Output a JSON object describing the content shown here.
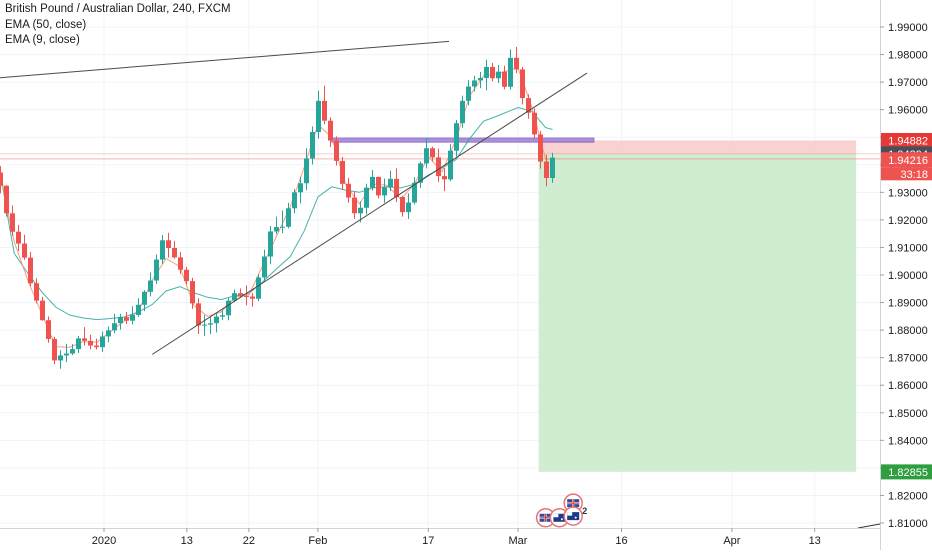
{
  "header": {
    "title": "British Pound / Australian Dollar, 240, FXCM",
    "indicators": [
      "EMA (50, close)",
      "EMA (9, close)"
    ]
  },
  "colors": {
    "up": "#26a69a",
    "down": "#ef5350",
    "ema50": "#26a69a",
    "ema9": "#ff8a65",
    "zone": "#9575cd",
    "stop_area": "#f8c9c9",
    "target_area": "#ccebcc",
    "grid": "#f0f3fa",
    "axis_text": "#1b1b1b",
    "trendline": "#4a4a4a"
  },
  "chart_data": {
    "type": "candlestick",
    "symbol": "GBPAUD",
    "timeframe": "240",
    "ylim": [
      1.8095,
      1.9985
    ],
    "y_ticks": [
      "1.99000",
      "1.98000",
      "1.97000",
      "1.96000",
      "1.95000",
      "1.94000",
      "1.93000",
      "1.92000",
      "1.91000",
      "1.90000",
      "1.89000",
      "1.88000",
      "1.87000",
      "1.86000",
      "1.85000",
      "1.84000",
      "1.83000",
      "1.82000",
      "1.81000"
    ],
    "x_ticks": [
      "2020",
      "13",
      "22",
      "Feb",
      "17",
      "Mar",
      "16",
      "Apr",
      "13"
    ],
    "x_tick_dates": [
      "2020-01-01",
      "2020-01-13",
      "2020-01-22",
      "2020-02-01",
      "2020-02-17",
      "2020-03-01",
      "2020-03-16",
      "2020-04-01",
      "2020-04-13"
    ],
    "price_labels": {
      "stop": "1.94882",
      "current": "1.94394",
      "last": "1.94216",
      "countdown": "33:18",
      "target": "1.82855"
    },
    "price_levels": {
      "stop": 1.94882,
      "current": 1.94394,
      "last": 1.94216,
      "target": 1.82855
    },
    "position": {
      "type": "short",
      "entry": 1.9439,
      "stop": 1.94882,
      "target": 1.82855,
      "start": "2020-03-04",
      "end": "2020-04-19"
    },
    "resistance_zone": {
      "top": 1.9497,
      "bottom": 1.9482,
      "start": "2020-02-03",
      "end": "2020-03-12"
    },
    "trendlines": [
      {
        "name": "upper-trendline",
        "start": [
          "2019-12-14",
          1.971
        ],
        "end": [
          "2020-02-20",
          1.9848
        ]
      },
      {
        "name": "rising-support-trendline",
        "start": [
          "2020-01-08",
          1.8712
        ],
        "end": [
          "2020-03-11",
          1.9733
        ]
      }
    ],
    "candles": [
      [
        "2019-12-17",
        1.9372,
        1.9395,
        1.9296,
        1.9324
      ],
      [
        "2019-12-18",
        1.9324,
        1.9326,
        1.9212,
        1.9224
      ],
      [
        "2019-12-18",
        1.9224,
        1.9252,
        1.9142,
        1.9157
      ],
      [
        "2019-12-19",
        1.9157,
        1.9182,
        1.9087,
        1.9114
      ],
      [
        "2019-12-20",
        1.9114,
        1.9146,
        1.9055,
        1.9063
      ],
      [
        "2019-12-21",
        1.9063,
        1.9083,
        1.896,
        1.897
      ],
      [
        "2019-12-22",
        1.897,
        1.8988,
        1.8897,
        1.8907
      ],
      [
        "2019-12-23",
        1.8907,
        1.8921,
        1.8834,
        1.8836
      ],
      [
        "2019-12-24",
        1.8836,
        1.885,
        1.8754,
        1.8768
      ],
      [
        "2019-12-25",
        1.8768,
        1.8776,
        1.8676,
        1.869
      ],
      [
        "2019-12-25",
        1.869,
        1.8727,
        1.866,
        1.8708
      ],
      [
        "2019-12-26",
        1.8708,
        1.875,
        1.8684,
        1.8715
      ],
      [
        "2019-12-27",
        1.8715,
        1.8749,
        1.8709,
        1.8731
      ],
      [
        "2019-12-28",
        1.8731,
        1.8779,
        1.8717,
        1.877
      ],
      [
        "2019-12-29",
        1.877,
        1.8811,
        1.8744,
        1.8761
      ],
      [
        "2019-12-30",
        1.8761,
        1.8783,
        1.873,
        1.8744
      ],
      [
        "2019-12-31",
        1.8744,
        1.8769,
        1.873,
        1.8738
      ],
      [
        "2019-12-31",
        1.8738,
        1.8795,
        1.8721,
        1.8777
      ],
      [
        "2020-01-01",
        1.8777,
        1.8813,
        1.8756,
        1.8799
      ],
      [
        "2020-01-02",
        1.8799,
        1.8859,
        1.8789,
        1.8825
      ],
      [
        "2020-01-03",
        1.8825,
        1.8859,
        1.8802,
        1.8847
      ],
      [
        "2020-01-04",
        1.8847,
        1.8866,
        1.8822,
        1.8834
      ],
      [
        "2020-01-05",
        1.8834,
        1.8887,
        1.8821,
        1.8855
      ],
      [
        "2020-01-06",
        1.8855,
        1.8916,
        1.8848,
        1.8892
      ],
      [
        "2020-01-07",
        1.8892,
        1.8945,
        1.8869,
        1.8939
      ],
      [
        "2020-01-07",
        1.8939,
        1.9009,
        1.8922,
        1.898
      ],
      [
        "2020-01-08",
        1.898,
        1.9075,
        1.8968,
        1.9056
      ],
      [
        "2020-01-09",
        1.9056,
        1.9145,
        1.904,
        1.9126
      ],
      [
        "2020-01-10",
        1.9126,
        1.9153,
        1.9063,
        1.9098
      ],
      [
        "2020-01-11",
        1.9098,
        1.9124,
        1.9059,
        1.9064
      ],
      [
        "2020-01-12",
        1.9064,
        1.9083,
        1.9004,
        1.9019
      ],
      [
        "2020-01-13",
        1.9019,
        1.903,
        1.8965,
        1.8978
      ],
      [
        "2020-01-14",
        1.8978,
        1.899,
        1.8877,
        1.8897
      ],
      [
        "2020-01-14",
        1.8897,
        1.8916,
        1.8786,
        1.8817
      ],
      [
        "2020-01-15",
        1.8817,
        1.8855,
        1.8779,
        1.882
      ],
      [
        "2020-01-16",
        1.882,
        1.8849,
        1.8786,
        1.8825
      ],
      [
        "2020-01-17",
        1.8825,
        1.8862,
        1.8792,
        1.8849
      ],
      [
        "2020-01-18",
        1.8849,
        1.8872,
        1.8837,
        1.8854
      ],
      [
        "2020-01-19",
        1.8854,
        1.8917,
        1.8836,
        1.8907
      ],
      [
        "2020-01-20",
        1.8907,
        1.8947,
        1.8901,
        1.8934
      ],
      [
        "2020-01-21",
        1.8934,
        1.8951,
        1.8918,
        1.8924
      ],
      [
        "2020-01-21",
        1.8924,
        1.8962,
        1.889,
        1.8922
      ],
      [
        "2020-01-22",
        1.8922,
        1.8935,
        1.8885,
        1.8914
      ],
      [
        "2020-01-23",
        1.8914,
        1.9003,
        1.8905,
        1.8991
      ],
      [
        "2020-01-24",
        1.8991,
        1.9092,
        1.8975,
        1.9067
      ],
      [
        "2020-01-25",
        1.9067,
        1.9178,
        1.9039,
        1.9158
      ],
      [
        "2020-01-26",
        1.9158,
        1.9212,
        1.9148,
        1.9174
      ],
      [
        "2020-01-27",
        1.9174,
        1.9234,
        1.9152,
        1.9175
      ],
      [
        "2020-01-28",
        1.9175,
        1.9262,
        1.9169,
        1.9242
      ],
      [
        "2020-01-28",
        1.9242,
        1.9312,
        1.9224,
        1.93
      ],
      [
        "2020-01-29",
        1.93,
        1.9357,
        1.926,
        1.9333
      ],
      [
        "2020-01-30",
        1.9333,
        1.946,
        1.9308,
        1.9423
      ],
      [
        "2020-01-31",
        1.9423,
        1.9539,
        1.9401,
        1.9519
      ],
      [
        "2020-02-01",
        1.9519,
        1.9669,
        1.9495,
        1.9632
      ],
      [
        "2020-02-02",
        1.9632,
        1.9687,
        1.9547,
        1.956
      ],
      [
        "2020-02-03",
        1.956,
        1.9572,
        1.9464,
        1.9488
      ],
      [
        "2020-02-04",
        1.9488,
        1.9503,
        1.9398,
        1.9414
      ],
      [
        "2020-02-04",
        1.9414,
        1.9428,
        1.9308,
        1.9331
      ],
      [
        "2020-02-05",
        1.9331,
        1.9353,
        1.9262,
        1.9281
      ],
      [
        "2020-02-06",
        1.9281,
        1.9304,
        1.9203,
        1.9224
      ],
      [
        "2020-02-07",
        1.9224,
        1.9267,
        1.9191,
        1.9244
      ],
      [
        "2020-02-08",
        1.9244,
        1.9331,
        1.9221,
        1.9317
      ],
      [
        "2020-02-09",
        1.9317,
        1.9381,
        1.9306,
        1.9356
      ],
      [
        "2020-02-10",
        1.9356,
        1.9357,
        1.9278,
        1.9289
      ],
      [
        "2020-02-11",
        1.9289,
        1.935,
        1.9262,
        1.9318
      ],
      [
        "2020-02-11",
        1.9318,
        1.9379,
        1.9305,
        1.9349
      ],
      [
        "2020-02-12",
        1.9349,
        1.9387,
        1.9265,
        1.9283
      ],
      [
        "2020-02-13",
        1.9283,
        1.9287,
        1.9212,
        1.9228
      ],
      [
        "2020-02-14",
        1.9228,
        1.9296,
        1.9203,
        1.9263
      ],
      [
        "2020-02-15",
        1.9263,
        1.9355,
        1.9256,
        1.9335
      ],
      [
        "2020-02-16",
        1.9335,
        1.9412,
        1.9316,
        1.9405
      ],
      [
        "2020-02-17",
        1.9405,
        1.9497,
        1.9387,
        1.946
      ],
      [
        "2020-02-18",
        1.946,
        1.9466,
        1.9412,
        1.9427
      ],
      [
        "2020-02-18",
        1.9427,
        1.9459,
        1.9338,
        1.9359
      ],
      [
        "2020-02-19",
        1.9359,
        1.9388,
        1.9304,
        1.9347
      ],
      [
        "2020-02-20",
        1.9347,
        1.9475,
        1.934,
        1.9451
      ],
      [
        "2020-02-21",
        1.9451,
        1.9563,
        1.943,
        1.9551
      ],
      [
        "2020-02-22",
        1.9551,
        1.9651,
        1.9534,
        1.9632
      ],
      [
        "2020-02-23",
        1.9632,
        1.9707,
        1.9616,
        1.9684
      ],
      [
        "2020-02-24",
        1.9684,
        1.9723,
        1.9666,
        1.9706
      ],
      [
        "2020-02-25",
        1.9706,
        1.9737,
        1.9678,
        1.9715
      ],
      [
        "2020-02-25",
        1.9715,
        1.9781,
        1.967,
        1.9755
      ],
      [
        "2020-02-26",
        1.9755,
        1.977,
        1.9703,
        1.9714
      ],
      [
        "2020-02-27",
        1.9714,
        1.9762,
        1.9697,
        1.9738
      ],
      [
        "2020-02-28",
        1.9738,
        1.976,
        1.9674,
        1.9683
      ],
      [
        "2020-02-29",
        1.9683,
        1.9819,
        1.9673,
        1.9788
      ],
      [
        "2020-03-01",
        1.9788,
        1.9828,
        1.9732,
        1.9746
      ],
      [
        "2020-03-02",
        1.9746,
        1.9755,
        1.9619,
        1.9642
      ],
      [
        "2020-03-03",
        1.9642,
        1.9656,
        1.9567,
        1.9589
      ],
      [
        "2020-03-03",
        1.9589,
        1.9605,
        1.9496,
        1.951
      ],
      [
        "2020-03-04",
        1.951,
        1.9523,
        1.9386,
        1.9412
      ],
      [
        "2020-03-05",
        1.9412,
        1.9436,
        1.9322,
        1.9352
      ],
      [
        "2020-03-06",
        1.9352,
        1.9443,
        1.9335,
        1.9426
      ]
    ],
    "ema50": [
      [
        "2019-12-17",
        1.9372
      ],
      [
        "2019-12-18",
        1.9217
      ],
      [
        "2019-12-19",
        1.9078
      ],
      [
        "2019-12-21",
        1.9005
      ],
      [
        "2019-12-23",
        1.8938
      ],
      [
        "2019-12-25",
        1.8884
      ],
      [
        "2019-12-27",
        1.8855
      ],
      [
        "2019-12-29",
        1.8844
      ],
      [
        "2019-12-31",
        1.8838
      ],
      [
        "2020-01-02",
        1.8842
      ],
      [
        "2020-01-04",
        1.8848
      ],
      [
        "2020-01-06",
        1.8866
      ],
      [
        "2020-01-08",
        1.8893
      ],
      [
        "2020-01-10",
        1.8942
      ],
      [
        "2020-01-12",
        1.8958
      ],
      [
        "2020-01-14",
        1.8936
      ],
      [
        "2020-01-16",
        1.8919
      ],
      [
        "2020-01-18",
        1.8911
      ],
      [
        "2020-01-20",
        1.8925
      ],
      [
        "2020-01-22",
        1.8933
      ],
      [
        "2020-01-24",
        1.8975
      ],
      [
        "2020-01-26",
        1.9022
      ],
      [
        "2020-01-28",
        1.9067
      ],
      [
        "2020-01-30",
        1.9159
      ],
      [
        "2020-02-01",
        1.9283
      ],
      [
        "2020-02-03",
        1.932
      ],
      [
        "2020-02-05",
        1.9308
      ],
      [
        "2020-02-07",
        1.93
      ],
      [
        "2020-02-09",
        1.9316
      ],
      [
        "2020-02-11",
        1.932
      ],
      [
        "2020-02-13",
        1.9316
      ],
      [
        "2020-02-15",
        1.933
      ],
      [
        "2020-02-17",
        1.9363
      ],
      [
        "2020-02-19",
        1.9388
      ],
      [
        "2020-02-21",
        1.9418
      ],
      [
        "2020-02-23",
        1.9495
      ],
      [
        "2020-02-25",
        1.9558
      ],
      [
        "2020-02-27",
        1.9577
      ],
      [
        "2020-03-01",
        1.9608
      ],
      [
        "2020-03-03",
        1.9594
      ],
      [
        "2020-03-05",
        1.9535
      ],
      [
        "2020-03-06",
        1.9528
      ]
    ],
    "ema9": [
      [
        "2019-12-17",
        1.9372
      ],
      [
        "2019-12-18",
        1.9238
      ],
      [
        "2019-12-19",
        1.912
      ],
      [
        "2019-12-21",
        1.8978
      ],
      [
        "2019-12-23",
        1.8858
      ],
      [
        "2019-12-25",
        1.874
      ],
      [
        "2019-12-27",
        1.8738
      ],
      [
        "2019-12-29",
        1.8758
      ],
      [
        "2019-12-31",
        1.8756
      ],
      [
        "2020-01-02",
        1.8796
      ],
      [
        "2020-01-04",
        1.8834
      ],
      [
        "2020-01-06",
        1.8868
      ],
      [
        "2020-01-08",
        1.8982
      ],
      [
        "2020-01-10",
        1.906
      ],
      [
        "2020-01-12",
        1.903
      ],
      [
        "2020-01-14",
        1.889
      ],
      [
        "2020-01-16",
        1.885
      ],
      [
        "2020-01-18",
        1.8866
      ],
      [
        "2020-01-20",
        1.892
      ],
      [
        "2020-01-22",
        1.8927
      ],
      [
        "2020-01-24",
        1.9034
      ],
      [
        "2020-01-26",
        1.914
      ],
      [
        "2020-01-28",
        1.9248
      ],
      [
        "2020-01-30",
        1.939
      ],
      [
        "2020-02-01",
        1.9545
      ],
      [
        "2020-02-03",
        1.95
      ],
      [
        "2020-02-05",
        1.933
      ],
      [
        "2020-02-07",
        1.9258
      ],
      [
        "2020-02-09",
        1.933
      ],
      [
        "2020-02-11",
        1.9326
      ],
      [
        "2020-02-13",
        1.9275
      ],
      [
        "2020-02-15",
        1.933
      ],
      [
        "2020-02-17",
        1.943
      ],
      [
        "2020-02-19",
        1.9375
      ],
      [
        "2020-02-21",
        1.949
      ],
      [
        "2020-02-23",
        1.965
      ],
      [
        "2020-02-25",
        1.9722
      ],
      [
        "2020-02-27",
        1.973
      ],
      [
        "2020-03-01",
        1.9752
      ],
      [
        "2020-03-03",
        1.961
      ],
      [
        "2020-03-05",
        1.942
      ],
      [
        "2020-03-06",
        1.9422
      ]
    ],
    "events": [
      {
        "date": "2020-03-09",
        "price": 1.8172,
        "label": "",
        "icon": "uk-flag-event-icon"
      },
      {
        "date": "2020-03-05",
        "price": 1.8119,
        "label": "",
        "icon": "uk-flag-event-icon"
      },
      {
        "date": "2020-03-07",
        "price": 1.8119,
        "label": "2",
        "icon": "au-flag-event-icon"
      },
      {
        "date": "2020-03-09",
        "price": 1.8125,
        "label": "2",
        "icon": "au-flag-event-icon"
      }
    ]
  }
}
